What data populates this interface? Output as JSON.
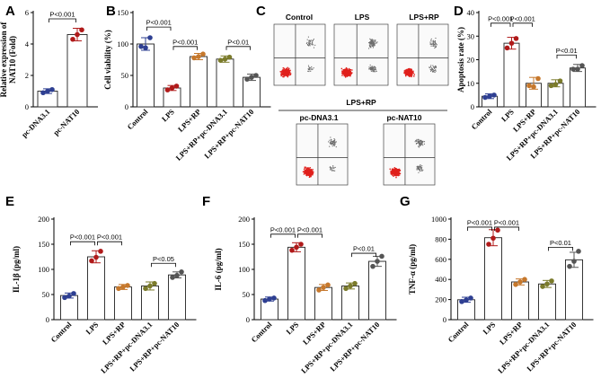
{
  "panel_labels": [
    "A",
    "B",
    "C",
    "D",
    "E",
    "F",
    "G"
  ],
  "colors": {
    "control": "#2e3f92",
    "lps": "#b01a1a",
    "lps_rp": "#c6782c",
    "lps_rp_pcdna": "#7b7b2b",
    "lps_rp_pcnat10": "#555555",
    "flow_cells": "#e0201c",
    "flow_sparse": "#6e6e6e"
  },
  "flow_cytometry": {
    "top_titles": [
      "Control",
      "LPS",
      "LPS+RP"
    ],
    "group_title": "LPS+RP",
    "bottom_titles": [
      "pc-DNA3.1",
      "pc-NAT10"
    ]
  },
  "chart_data": [
    {
      "id": "A",
      "type": "bar",
      "categories": [
        "pc-DNA3.1",
        "pc-NAT10"
      ],
      "values": [
        1.0,
        4.6
      ],
      "errors": [
        0.15,
        0.4
      ],
      "points": [
        [
          0.9,
          1.1,
          1.0
        ],
        [
          4.3,
          4.9,
          4.6
        ]
      ],
      "ylabel": "Relative expression of\nNAT10 (Fold)",
      "ylim": [
        0,
        6
      ],
      "yticks": [
        0,
        2,
        4,
        6
      ],
      "comparisons": [
        {
          "from": 0,
          "to": 1,
          "label": "P<0.001",
          "y": 5.6
        }
      ]
    },
    {
      "id": "B",
      "type": "bar",
      "categories": [
        "Control",
        "LPS",
        "LPS+RP",
        "LPS+RP+pc-DNA3.1",
        "LPS+RP+pc-NAT10"
      ],
      "values": [
        100,
        30,
        80,
        76,
        47
      ],
      "errors": [
        10,
        4,
        5,
        5,
        5
      ],
      "points": [
        [
          96,
          110,
          94
        ],
        [
          27,
          33,
          30
        ],
        [
          78,
          84,
          80
        ],
        [
          74,
          79,
          76
        ],
        [
          44,
          50,
          47
        ]
      ],
      "ylabel": "Cell viability (%)",
      "ylim": [
        0,
        150
      ],
      "yticks": [
        0,
        50,
        100,
        150
      ],
      "comparisons": [
        {
          "from": 0,
          "to": 1,
          "label": "P<0.001",
          "y": 127
        },
        {
          "from": 1,
          "to": 2,
          "label": "P<0.001",
          "y": 96
        },
        {
          "from": 3,
          "to": 4,
          "label": "P<0.01",
          "y": 96
        }
      ]
    },
    {
      "id": "D",
      "type": "bar",
      "categories": [
        "Control",
        "LPS",
        "LPS+RP",
        "LPS+RP+pc-DNA3.1",
        "LPS+RP+pc-NAT10"
      ],
      "values": [
        4.5,
        27,
        10,
        10,
        16.5
      ],
      "errors": [
        1,
        2.5,
        2.5,
        1.5,
        1.5
      ],
      "points": [
        [
          4,
          5,
          4.5
        ],
        [
          25,
          29,
          27
        ],
        [
          9,
          12,
          8.5
        ],
        [
          9,
          11,
          9.5
        ],
        [
          16,
          17.5,
          16
        ]
      ],
      "ylabel": "Apoptosis rate (%)",
      "ylim": [
        0,
        40
      ],
      "yticks": [
        0,
        10,
        20,
        30,
        40
      ],
      "comparisons": [
        {
          "from": 0,
          "to": 1,
          "label": "P<0.001",
          "y": 35.5
        },
        {
          "from": 1,
          "to": 2,
          "label": "P<0.001",
          "y": 35.5
        },
        {
          "from": 3,
          "to": 4,
          "label": "P<0.01",
          "y": 22
        }
      ]
    },
    {
      "id": "E",
      "type": "bar",
      "categories": [
        "Control",
        "LPS",
        "LPS+RP",
        "LPS+RP+pc-DNA3.1",
        "LPS+RP+pc-NAT10"
      ],
      "values": [
        48,
        125,
        65,
        67,
        89
      ],
      "errors": [
        5,
        12,
        5,
        8,
        6
      ],
      "points": [
        [
          44,
          52,
          47
        ],
        [
          117,
          136,
          124
        ],
        [
          62,
          68,
          65
        ],
        [
          62,
          72,
          67
        ],
        [
          84,
          95,
          88
        ]
      ],
      "ylabel": "IL-1β (pg/ml)",
      "ylim": [
        0,
        200
      ],
      "yticks": [
        0,
        50,
        100,
        150,
        200
      ],
      "comparisons": [
        {
          "from": 0,
          "to": 1,
          "label": "P<0.001",
          "y": 155
        },
        {
          "from": 1,
          "to": 2,
          "label": "P<0.001",
          "y": 155
        },
        {
          "from": 3,
          "to": 4,
          "label": "P<0.05",
          "y": 112
        }
      ]
    },
    {
      "id": "F",
      "type": "bar",
      "categories": [
        "Control",
        "LPS",
        "LPS+RP",
        "LPS+RP+pc-DNA3.1",
        "LPS+RP+pc-NAT10"
      ],
      "values": [
        41,
        144,
        64,
        67,
        116
      ],
      "errors": [
        4,
        9,
        6,
        6,
        10
      ],
      "points": [
        [
          38,
          43,
          41
        ],
        [
          138,
          150,
          144
        ],
        [
          59,
          69,
          64
        ],
        [
          62,
          72,
          67
        ],
        [
          106,
          126,
          116
        ]
      ],
      "ylabel": "IL-6 (pg/ml)",
      "ylim": [
        0,
        200
      ],
      "yticks": [
        0,
        50,
        100,
        150,
        200
      ],
      "comparisons": [
        {
          "from": 0,
          "to": 1,
          "label": "P<0.001",
          "y": 170
        },
        {
          "from": 1,
          "to": 2,
          "label": "P<0.001",
          "y": 170
        },
        {
          "from": 3,
          "to": 4,
          "label": "P<0.01",
          "y": 132
        }
      ]
    },
    {
      "id": "G",
      "type": "bar",
      "categories": [
        "Control",
        "LPS",
        "LPS+RP",
        "LPS+RP+pc-DNA3.1",
        "LPS+RP+pc-NAT10"
      ],
      "values": [
        198,
        815,
        375,
        355,
        595
      ],
      "errors": [
        25,
        80,
        30,
        35,
        75
      ],
      "points": [
        [
          180,
          215,
          195
        ],
        [
          750,
          890,
          810
        ],
        [
          350,
          400,
          375
        ],
        [
          330,
          385,
          355
        ],
        [
          530,
          680,
          580
        ]
      ],
      "ylabel": "TNF-α (pg/ml)",
      "ylim": [
        0,
        1000
      ],
      "yticks": [
        0,
        200,
        400,
        600,
        800,
        1000
      ],
      "comparisons": [
        {
          "from": 0,
          "to": 1,
          "label": "P<0.001",
          "y": 920
        },
        {
          "from": 1,
          "to": 2,
          "label": "P<0.001",
          "y": 920
        },
        {
          "from": 3,
          "to": 4,
          "label": "P<0.01",
          "y": 720
        }
      ]
    }
  ]
}
